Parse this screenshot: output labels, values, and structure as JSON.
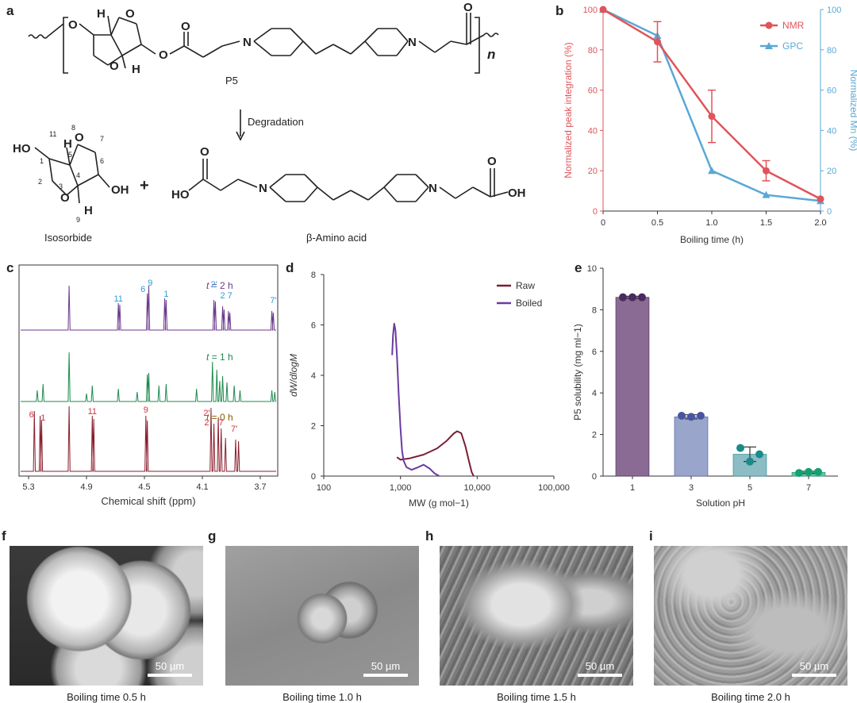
{
  "panels": {
    "a": {
      "letter": "a",
      "polymer_label": "P5",
      "repeat_n": "n",
      "arrow_label": "Degradation",
      "product1_label": "Isosorbide",
      "product2_label": "β-Amino acid",
      "atom_labels": {
        "O": "O",
        "H": "H",
        "N": "N",
        "HO": "HO",
        "OH": "OH",
        "plus": "+",
        "n11": "11",
        "n8": "8",
        "n7": "7",
        "n5": "5",
        "n6": "6",
        "n1": "1",
        "n4": "4",
        "n2": "2",
        "n3": "3",
        "n9": "9"
      }
    },
    "b": {
      "letter": "b",
      "legend": [
        "NMR",
        "GPC"
      ]
    },
    "c": {
      "letter": "c",
      "xlabel": "Chemical shift (ppm)",
      "xticks": [
        "5.3",
        "4.9",
        "4.5",
        "4.1",
        "3.7"
      ],
      "traces": [
        {
          "label_t": "t",
          "label_rest": " = 2 h",
          "color": "#6b3a8c",
          "peaks": [
            "11",
            "6",
            "9",
            "1",
            "2'",
            "2",
            "7",
            "7'"
          ]
        },
        {
          "label_t": "t",
          "label_rest": " = 1 h",
          "color": "#1e8a4e",
          "peaks": []
        },
        {
          "label_t": "t",
          "label_rest": " = 0 h",
          "color": "#8a1e2e",
          "peaks": [
            "6",
            "1",
            "11",
            "9",
            "2'",
            "2",
            "7",
            "7'"
          ]
        }
      ],
      "label_colors": {
        "top": "#2c9bd6",
        "bottom": "#d23241",
        "t2": "#6b3a8c",
        "t1": "#1e8a4e",
        "t0": "#8a5a00"
      }
    },
    "d": {
      "letter": "d"
    },
    "e": {
      "letter": "e"
    }
  },
  "chart_data": [
    {
      "panel": "b",
      "type": "line",
      "xlabel": "Boiling time (h)",
      "ylabel_left": "Normalized peak integration (%)",
      "ylabel_right": "Normalized Mn (%)",
      "xlim": [
        0,
        2.0
      ],
      "ylim": [
        0,
        100
      ],
      "xticks": [
        "0",
        "0.5",
        "1.0",
        "1.5",
        "2.0"
      ],
      "yticks": [
        "0",
        "20",
        "40",
        "60",
        "80",
        "100"
      ],
      "legend_position": "top-right",
      "series": [
        {
          "name": "NMR",
          "color": "#e0545a",
          "x": [
            0,
            0.5,
            1.0,
            1.5,
            2.0
          ],
          "y": [
            100,
            84,
            47,
            20,
            6
          ],
          "err": [
            1,
            10,
            13,
            5,
            1
          ]
        },
        {
          "name": "GPC",
          "color": "#5aa8d6",
          "x": [
            0,
            0.5,
            1.0,
            1.5,
            2.0
          ],
          "y": [
            100,
            87,
            20,
            8,
            5
          ]
        }
      ]
    },
    {
      "panel": "d",
      "type": "line",
      "xlabel": "MW (g mol−1)",
      "ylabel": "dW/dlogM",
      "x_scale": "log",
      "xlim": [
        100,
        100000
      ],
      "ylim": [
        0,
        8
      ],
      "xticks": [
        "100",
        "1,000",
        "10,000",
        "100,000"
      ],
      "yticks": [
        "0",
        "2",
        "4",
        "6",
        "8"
      ],
      "legend_position": "top-right",
      "series": [
        {
          "name": "Raw",
          "color": "#7a1f35",
          "x": [
            900,
            1000,
            1300,
            2000,
            3000,
            4000,
            5000,
            5500,
            6200,
            7000,
            7800,
            8500,
            9000
          ],
          "y": [
            0.75,
            0.65,
            0.7,
            0.85,
            1.1,
            1.4,
            1.7,
            1.78,
            1.7,
            1.2,
            0.6,
            0.15,
            0
          ]
        },
        {
          "name": "Boiled",
          "color": "#6b3aa0",
          "x": [
            780,
            800,
            830,
            860,
            900,
            950,
            1000,
            1050,
            1100,
            1200,
            1400,
            1700,
            2000,
            2400,
            2800,
            3200
          ],
          "y": [
            4.8,
            5.6,
            6.05,
            5.8,
            4.8,
            3.2,
            1.9,
            1.0,
            0.6,
            0.35,
            0.25,
            0.35,
            0.45,
            0.3,
            0.1,
            0
          ]
        }
      ]
    },
    {
      "panel": "e",
      "type": "bar",
      "xlabel": "Solution pH",
      "ylabel": "P5 solubility (mg ml−1)",
      "categories": [
        "1",
        "3",
        "5",
        "7"
      ],
      "values": [
        8.6,
        2.85,
        1.05,
        0.18
      ],
      "err": [
        0.05,
        0.1,
        0.35,
        0.05
      ],
      "points": [
        [
          8.6,
          8.6,
          8.6
        ],
        [
          2.9,
          2.85,
          2.9
        ],
        [
          1.35,
          0.7,
          1.05
        ],
        [
          0.15,
          0.2,
          0.2
        ]
      ],
      "bar_colors": [
        "#8a6b93",
        "#9aa5cc",
        "#8cbcc4",
        "#5fc4a0"
      ],
      "point_colors": [
        "#4a2a60",
        "#4a55a0",
        "#1a8a8a",
        "#15a070"
      ],
      "ylim": [
        0,
        10
      ],
      "yticks": [
        "0",
        "2",
        "4",
        "6",
        "8",
        "10"
      ]
    }
  ],
  "sem_images": [
    {
      "letter": "f",
      "scale": "50 µm",
      "caption": "Boiling time 0.5 h"
    },
    {
      "letter": "g",
      "scale": "50 µm",
      "caption": "Boiling time 1.0 h"
    },
    {
      "letter": "h",
      "scale": "50 µm",
      "caption": "Boiling time 1.5 h"
    },
    {
      "letter": "i",
      "scale": "50 µm",
      "caption": "Boiling time 2.0 h"
    }
  ]
}
